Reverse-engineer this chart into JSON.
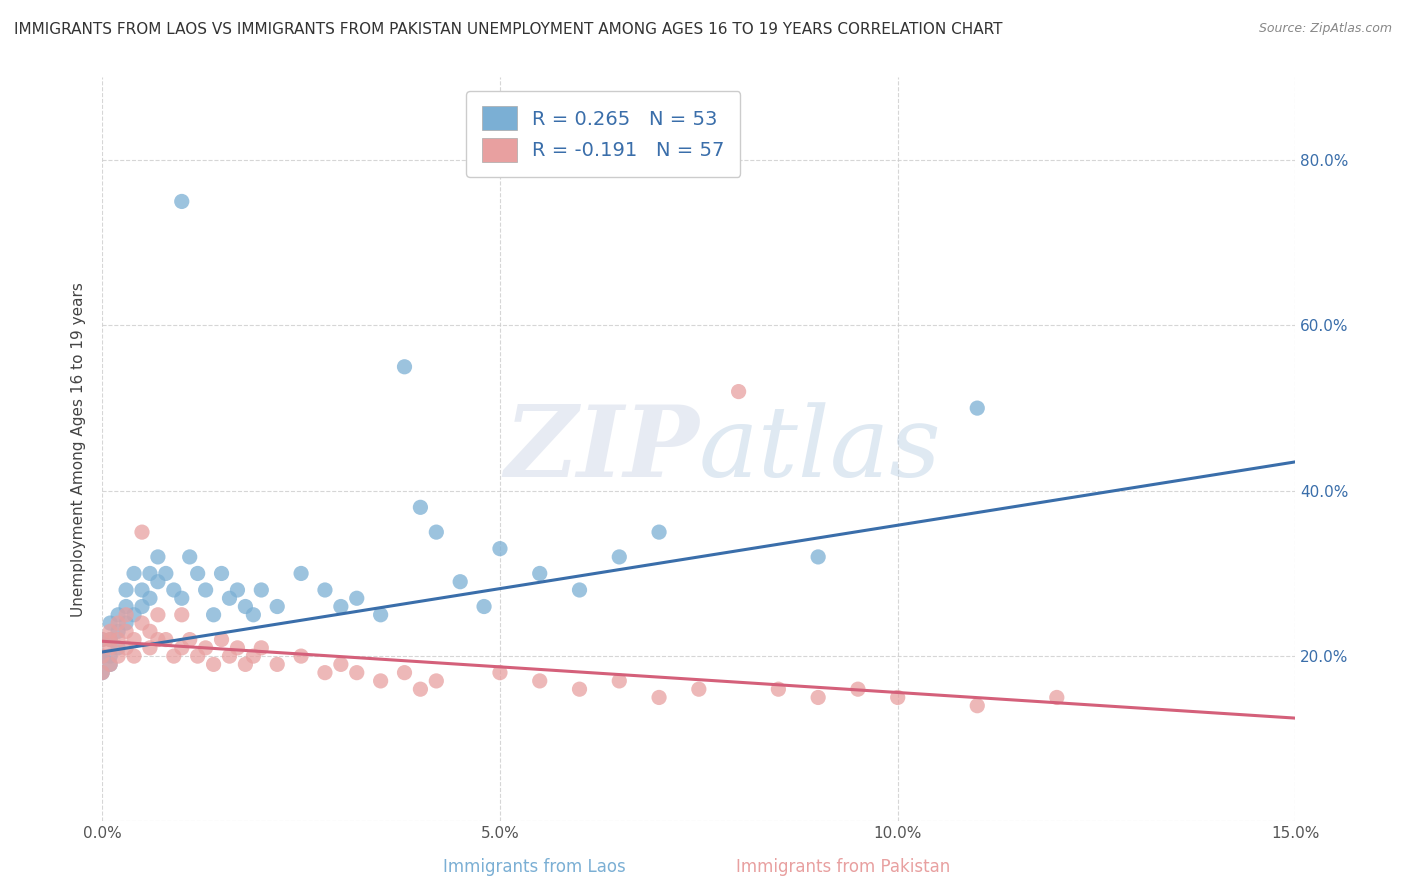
{
  "title": "IMMIGRANTS FROM LAOS VS IMMIGRANTS FROM PAKISTAN UNEMPLOYMENT AMONG AGES 16 TO 19 YEARS CORRELATION CHART",
  "source": "Source: ZipAtlas.com",
  "xlabel_laos": "Immigrants from Laos",
  "xlabel_pakistan": "Immigrants from Pakistan",
  "ylabel": "Unemployment Among Ages 16 to 19 years",
  "xlim": [
    0.0,
    0.15
  ],
  "ylim": [
    0.0,
    0.9
  ],
  "yticks": [
    0.0,
    0.2,
    0.4,
    0.6,
    0.8
  ],
  "ytick_labels_right": [
    "",
    "20.0%",
    "40.0%",
    "60.0%",
    "80.0%"
  ],
  "xticks": [
    0.0,
    0.05,
    0.1,
    0.15
  ],
  "xtick_labels": [
    "0.0%",
    "5.0%",
    "10.0%",
    "15.0%"
  ],
  "laos_R": 0.265,
  "laos_N": 53,
  "pakistan_R": -0.191,
  "pakistan_N": 57,
  "laos_color": "#7bafd4",
  "pakistan_color": "#e8a0a0",
  "laos_line_color": "#3a6eaa",
  "pakistan_line_color": "#d4607a",
  "background_color": "#ffffff",
  "grid_color": "#cccccc",
  "title_fontsize": 11,
  "source_fontsize": 9,
  "legend_text_color": "#3a6eaa",
  "laos_line_y0": 0.205,
  "laos_line_y1": 0.435,
  "pakistan_line_y0": 0.218,
  "pakistan_line_y1": 0.125,
  "laos_scatter_x": [
    0.0,
    0.0,
    0.0,
    0.001,
    0.001,
    0.001,
    0.001,
    0.002,
    0.002,
    0.002,
    0.003,
    0.003,
    0.003,
    0.004,
    0.004,
    0.005,
    0.005,
    0.006,
    0.006,
    0.007,
    0.007,
    0.008,
    0.009,
    0.01,
    0.01,
    0.011,
    0.012,
    0.013,
    0.014,
    0.015,
    0.016,
    0.017,
    0.018,
    0.019,
    0.02,
    0.022,
    0.025,
    0.028,
    0.03,
    0.032,
    0.035,
    0.038,
    0.04,
    0.042,
    0.045,
    0.048,
    0.05,
    0.055,
    0.06,
    0.065,
    0.07,
    0.09,
    0.11
  ],
  "laos_scatter_y": [
    0.2,
    0.18,
    0.22,
    0.2,
    0.24,
    0.22,
    0.19,
    0.25,
    0.23,
    0.21,
    0.28,
    0.26,
    0.24,
    0.3,
    0.25,
    0.28,
    0.26,
    0.3,
    0.27,
    0.32,
    0.29,
    0.3,
    0.28,
    0.75,
    0.27,
    0.32,
    0.3,
    0.28,
    0.25,
    0.3,
    0.27,
    0.28,
    0.26,
    0.25,
    0.28,
    0.26,
    0.3,
    0.28,
    0.26,
    0.27,
    0.25,
    0.55,
    0.38,
    0.35,
    0.29,
    0.26,
    0.33,
    0.3,
    0.28,
    0.32,
    0.35,
    0.32,
    0.5
  ],
  "pakistan_scatter_x": [
    0.0,
    0.0,
    0.0,
    0.001,
    0.001,
    0.001,
    0.001,
    0.002,
    0.002,
    0.002,
    0.003,
    0.003,
    0.003,
    0.004,
    0.004,
    0.005,
    0.005,
    0.006,
    0.006,
    0.007,
    0.007,
    0.008,
    0.009,
    0.01,
    0.01,
    0.011,
    0.012,
    0.013,
    0.014,
    0.015,
    0.016,
    0.017,
    0.018,
    0.019,
    0.02,
    0.022,
    0.025,
    0.028,
    0.03,
    0.032,
    0.035,
    0.038,
    0.04,
    0.042,
    0.05,
    0.055,
    0.06,
    0.065,
    0.07,
    0.075,
    0.08,
    0.085,
    0.09,
    0.095,
    0.1,
    0.11,
    0.12
  ],
  "pakistan_scatter_y": [
    0.2,
    0.22,
    0.18,
    0.21,
    0.23,
    0.19,
    0.22,
    0.2,
    0.24,
    0.22,
    0.25,
    0.21,
    0.23,
    0.2,
    0.22,
    0.35,
    0.24,
    0.23,
    0.21,
    0.25,
    0.22,
    0.22,
    0.2,
    0.21,
    0.25,
    0.22,
    0.2,
    0.21,
    0.19,
    0.22,
    0.2,
    0.21,
    0.19,
    0.2,
    0.21,
    0.19,
    0.2,
    0.18,
    0.19,
    0.18,
    0.17,
    0.18,
    0.16,
    0.17,
    0.18,
    0.17,
    0.16,
    0.17,
    0.15,
    0.16,
    0.52,
    0.16,
    0.15,
    0.16,
    0.15,
    0.14,
    0.15
  ]
}
